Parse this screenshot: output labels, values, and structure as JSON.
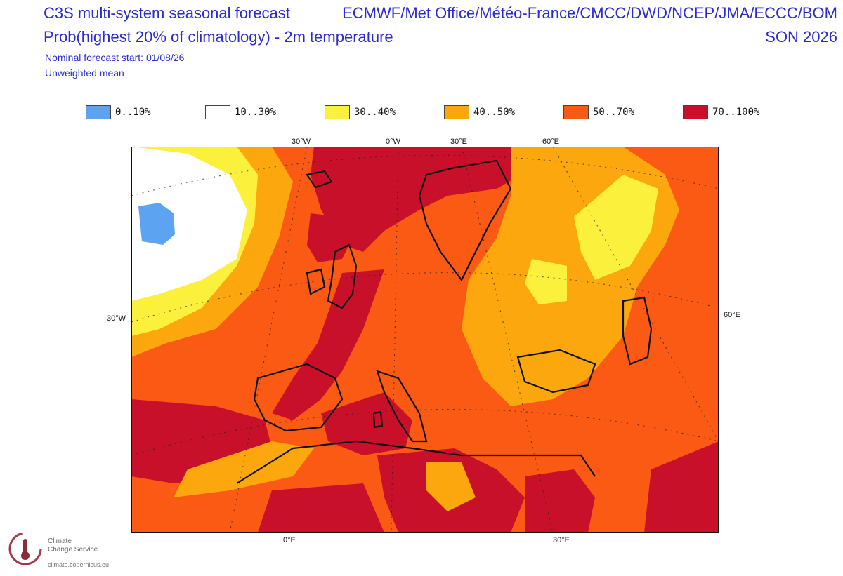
{
  "header": {
    "title_line1": "C3S multi-system seasonal forecast",
    "title_line2": "Prob(highest 20% of climatology) - 2m temperature",
    "nominal_start": "Nominal forecast start: 01/08/26",
    "mean_type": "Unweighted mean",
    "centres": "ECMWF/Met Office/Météo-France/CMCC/DWD/NCEP/JMA/ECCC/BOM",
    "season": "SON 2026"
  },
  "legend": [
    {
      "label": "0..10%",
      "color": "#5ca3f2"
    },
    {
      "label": "10..30%",
      "color": "#ffffff"
    },
    {
      "label": "30..40%",
      "color": "#fbf03c"
    },
    {
      "label": "40..50%",
      "color": "#fba70d"
    },
    {
      "label": "50..70%",
      "color": "#fa5a13"
    },
    {
      "label": "70..100%",
      "color": "#c8102a"
    }
  ],
  "axis_labels": {
    "top": [
      "30°W",
      "0°W",
      "30°E",
      "60°E"
    ],
    "bottom": [
      "0°E",
      "30°E"
    ],
    "left": "30°W",
    "right": "60°E"
  },
  "logo": {
    "name_line1": "Climate",
    "name_line2": "Change Service",
    "url": "climate.copernicus.eu"
  }
}
